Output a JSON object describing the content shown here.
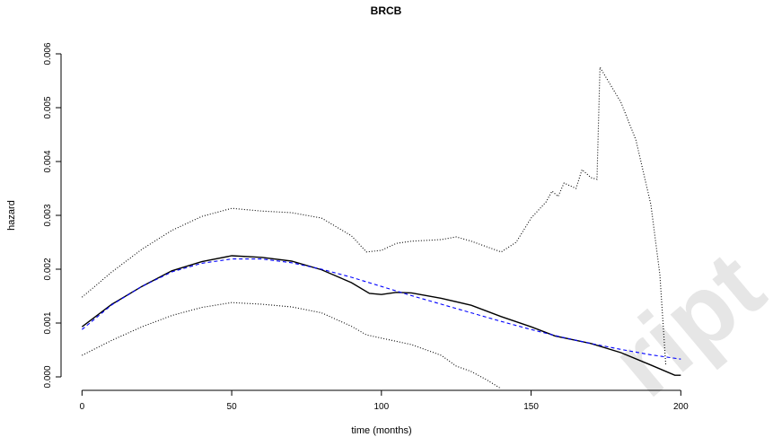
{
  "chart_data": {
    "type": "line",
    "title": "BRCB",
    "xlabel": "time (months)",
    "ylabel": "hazard",
    "xlim": [
      -7,
      208
    ],
    "ylim": [
      -0.00025,
      0.00625
    ],
    "xticks": [
      0,
      50,
      100,
      150,
      200
    ],
    "yticks": [
      {
        "value": 0,
        "label": "0.000"
      },
      {
        "value": 0.001,
        "label": "0.001"
      },
      {
        "value": 0.002,
        "label": "0.002"
      },
      {
        "value": 0.003,
        "label": "0.003"
      },
      {
        "value": 0.004,
        "label": "0.004"
      },
      {
        "value": 0.005,
        "label": "0.005"
      },
      {
        "value": 0.006,
        "label": "0.006"
      }
    ],
    "series": [
      {
        "color": "#000000",
        "dash": "dotted",
        "x": [
          0,
          10,
          20,
          30,
          40,
          50,
          60,
          70,
          80,
          90,
          95,
          100,
          105,
          110,
          120,
          125,
          130,
          140,
          145,
          150,
          155,
          157,
          159,
          161,
          163,
          165,
          167,
          170,
          172,
          173,
          180,
          185,
          190,
          193,
          195
        ],
        "values": [
          0.00148,
          0.00195,
          0.00237,
          0.00272,
          0.00298,
          0.00313,
          0.00308,
          0.00305,
          0.00295,
          0.00262,
          0.00232,
          0.00235,
          0.00248,
          0.00252,
          0.00255,
          0.0026,
          0.00252,
          0.00232,
          0.0025,
          0.00295,
          0.00325,
          0.00345,
          0.00335,
          0.0036,
          0.00355,
          0.0035,
          0.00385,
          0.0037,
          0.00367,
          0.00575,
          0.0051,
          0.0044,
          0.0032,
          0.0019,
          0.0002
        ]
      },
      {
        "color": "#000000",
        "dash": "dotted",
        "x": [
          0,
          10,
          20,
          30,
          40,
          50,
          60,
          70,
          80,
          90,
          95,
          100,
          110,
          120,
          125,
          130,
          135,
          140
        ],
        "values": [
          0.0004,
          0.00068,
          0.00093,
          0.00114,
          0.00129,
          0.00138,
          0.00135,
          0.0013,
          0.00119,
          0.00094,
          0.00078,
          0.00072,
          0.0006,
          0.0004,
          0.0002,
          0.0001,
          -5e-05,
          -0.00022
        ]
      },
      {
        "color": "#000000",
        "dash": "solid",
        "x": [
          0,
          10,
          20,
          30,
          40,
          50,
          60,
          70,
          80,
          90,
          96,
          100,
          105,
          110,
          120,
          130,
          140,
          150,
          158,
          170,
          180,
          190,
          198,
          200
        ],
        "values": [
          0.00093,
          0.00135,
          0.00168,
          0.00197,
          0.00214,
          0.00225,
          0.00222,
          0.00215,
          0.00199,
          0.00175,
          0.00155,
          0.00153,
          0.00157,
          0.00156,
          0.00146,
          0.00133,
          0.00112,
          0.00093,
          0.00076,
          0.00062,
          0.00045,
          0.00022,
          3e-05,
          3e-05
        ]
      },
      {
        "color": "#0000ff",
        "dash": "dashed",
        "x": [
          0,
          10,
          20,
          30,
          40,
          50,
          60,
          70,
          80,
          90,
          100,
          110,
          120,
          130,
          140,
          150,
          160,
          170,
          180,
          190,
          200
        ],
        "values": [
          0.00088,
          0.00134,
          0.00168,
          0.00195,
          0.00211,
          0.00219,
          0.00219,
          0.00212,
          0.002,
          0.00185,
          0.00168,
          0.00151,
          0.00135,
          0.00119,
          0.00103,
          0.00088,
          0.00074,
          0.00062,
          0.00051,
          0.00041,
          0.00033
        ]
      }
    ],
    "watermark": "ript"
  }
}
